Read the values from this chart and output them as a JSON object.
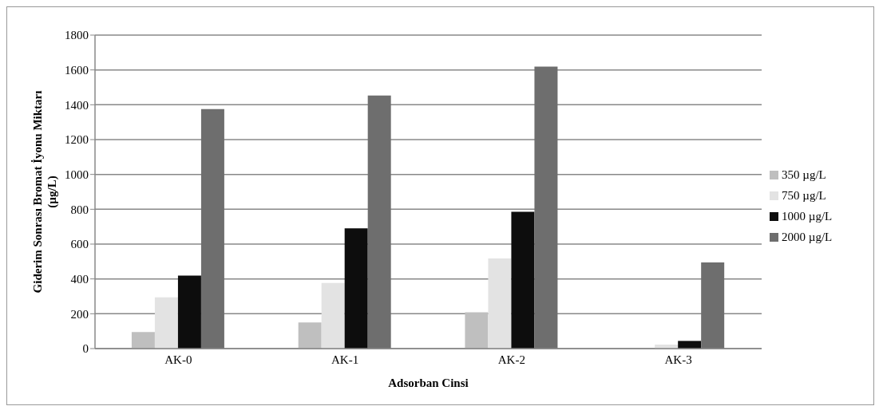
{
  "chart_data": {
    "type": "bar",
    "xlabel": "Adsorban Cinsi",
    "ylabel": "Giderim Sonrası Bromat İyonu Miktarı\n(µg/L)",
    "categories": [
      "AK-0",
      "AK-1",
      "AK-2",
      "AK-3"
    ],
    "series": [
      {
        "name": "350 µg/L",
        "color": "#bfbfbf",
        "values": [
          95,
          150,
          208,
          0
        ]
      },
      {
        "name": "750 µg/L",
        "color": "#e3e3e3",
        "values": [
          294,
          377,
          517,
          23
        ]
      },
      {
        "name": "1000 µg/L",
        "color": "#0d0d0d",
        "values": [
          419,
          691,
          786,
          44
        ]
      },
      {
        "name": "2000 µg/L",
        "color": "#6e6e6e",
        "values": [
          1375,
          1453,
          1619,
          495
        ]
      }
    ],
    "ylim": [
      0,
      1800
    ],
    "yticks": [
      0,
      200,
      400,
      600,
      800,
      1000,
      1200,
      1400,
      1600,
      1800
    ],
    "grid": "y",
    "legend": "right"
  }
}
